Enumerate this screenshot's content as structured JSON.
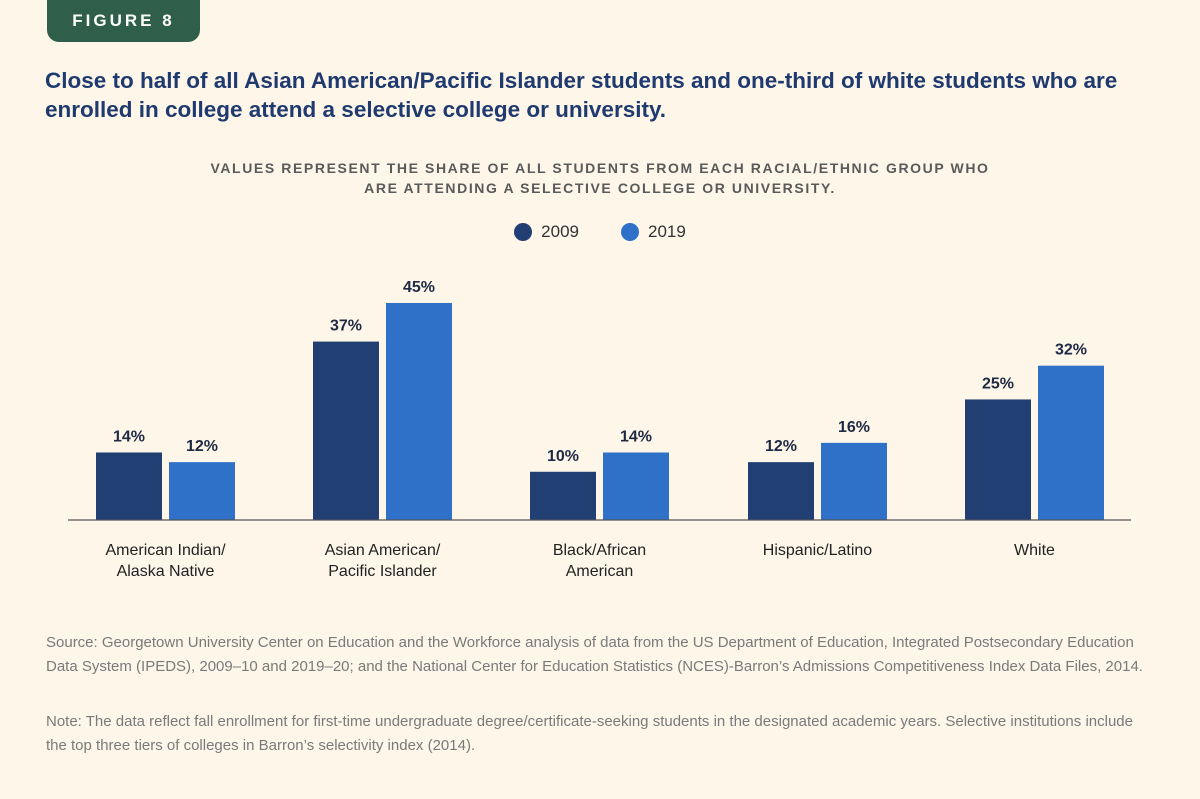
{
  "figure_label": "FIGURE 8",
  "headline": "Close to half of all Asian American/Pacific Islander students and one-third of white students who are enrolled in college attend a selective college or university.",
  "colors": {
    "series_2009": "#223f73",
    "series_2019": "#2f70c9",
    "badge": "#2f5e4a",
    "background": "#fdf6e9"
  },
  "chart_data": {
    "type": "bar",
    "title": "VALUES REPRESENT THE SHARE OF ALL STUDENTS FROM EACH RACIAL/ETHNIC GROUP WHO ARE ATTENDING A SELECTIVE COLLEGE OR UNIVERSITY.",
    "categories": [
      [
        "American Indian/",
        "Alaska Native"
      ],
      [
        "Asian American/",
        "Pacific Islander"
      ],
      [
        "Black/African",
        "American"
      ],
      [
        "Hispanic/Latino"
      ],
      [
        "White"
      ]
    ],
    "series": [
      {
        "name": "2009",
        "values": [
          14,
          37,
          10,
          12,
          25
        ],
        "labels": [
          "14%",
          "37%",
          "10%",
          "12%",
          "25%"
        ]
      },
      {
        "name": "2019",
        "values": [
          12,
          45,
          14,
          16,
          32
        ],
        "labels": [
          "12%",
          "45%",
          "14%",
          "16%",
          "32%"
        ]
      }
    ],
    "legend": "top-center",
    "grid": false,
    "ylim": [
      0,
      45
    ]
  },
  "source": "Source: Georgetown University Center on Education and the Workforce analysis of data from the US Department of Education, Integrated Postsecondary Education Data System (IPEDS), 2009–10 and 2019–20; and the National Center for Education Statistics (NCES)-Barron’s Admissions Competitiveness Index Data Files, 2014.",
  "note": "Note: The data reflect fall enrollment for first-time undergraduate degree/certificate-seeking students in the designated academic years. Selective institutions include the top three tiers of colleges in Barron’s selectivity index (2014)."
}
